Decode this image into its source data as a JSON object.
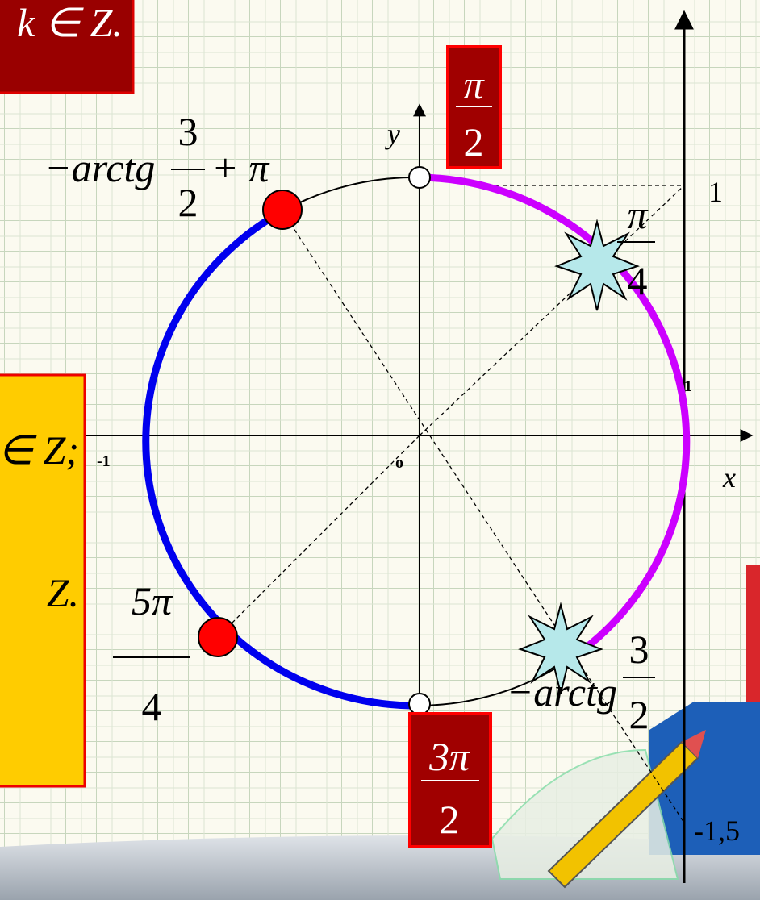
{
  "top_box": {
    "text": "k ∈ Z."
  },
  "side_box": {
    "line1": "∈ Z;",
    "line2": "Z."
  },
  "axes": {
    "x": "x",
    "y": "y",
    "origin": "o",
    "minus_one": "-1",
    "one_x": "1",
    "tan_one": "1",
    "tan_minus_one_five": "-1,5"
  },
  "angle_labels": {
    "pi_over_2": {
      "num": "π",
      "den": "2"
    },
    "three_pi_over_2": {
      "num": "3π",
      "den": "2"
    },
    "pi_over_4": {
      "num": "π",
      "den": "4"
    },
    "five_pi_over_4": {
      "num": "5π",
      "den": "4"
    },
    "arctg_plus_pi": {
      "prefix": "−arctg",
      "num": "3",
      "den": "2",
      "suffix": "+ π"
    },
    "minus_arctg": {
      "prefix": "−arctg",
      "num": "3",
      "den": "2"
    }
  }
}
